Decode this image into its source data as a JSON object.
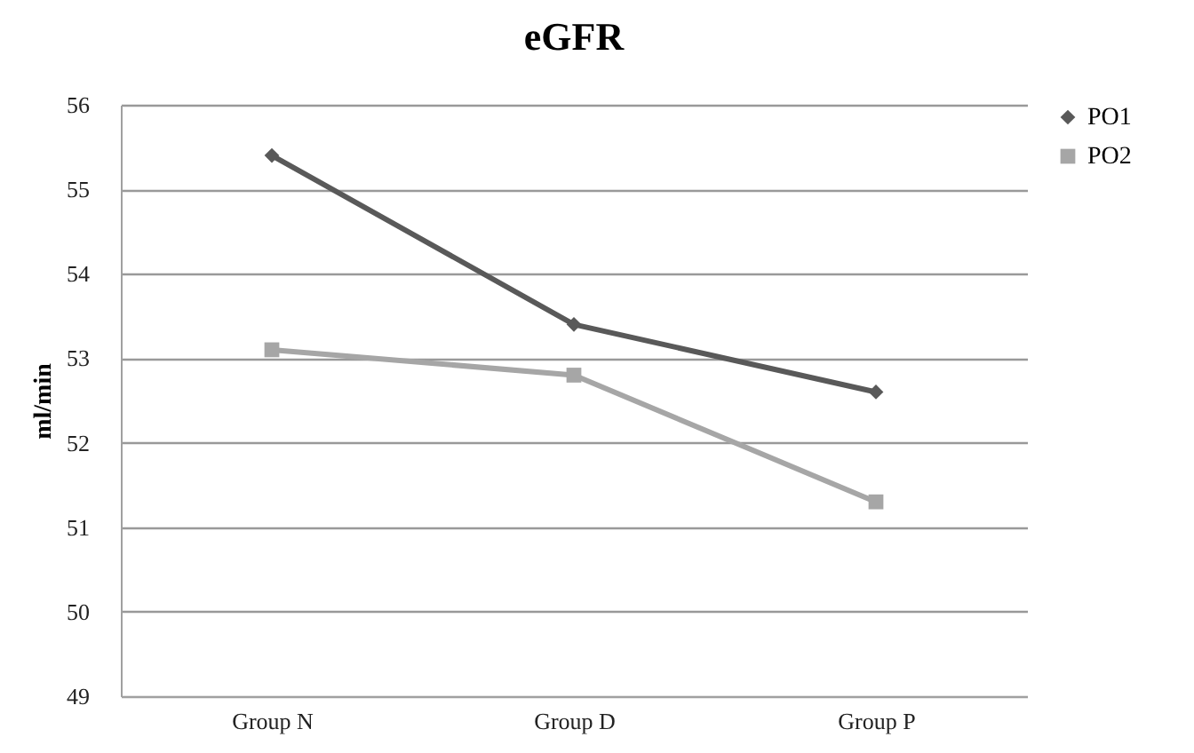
{
  "chart_data": {
    "type": "line",
    "title": "eGFR",
    "ylabel": "ml/min",
    "categories": [
      "Group N",
      "Group D",
      "Group P"
    ],
    "series": [
      {
        "name": "PO1",
        "color": "#595959",
        "marker": "diamond",
        "values": [
          55.4,
          53.4,
          52.6
        ]
      },
      {
        "name": "PO2",
        "color": "#a6a6a6",
        "marker": "square",
        "values": [
          53.1,
          52.8,
          51.3
        ]
      }
    ],
    "ylim": [
      49,
      56
    ],
    "yticks": [
      49,
      50,
      51,
      52,
      53,
      54,
      55,
      56
    ],
    "grid": "y",
    "legend": "right"
  }
}
